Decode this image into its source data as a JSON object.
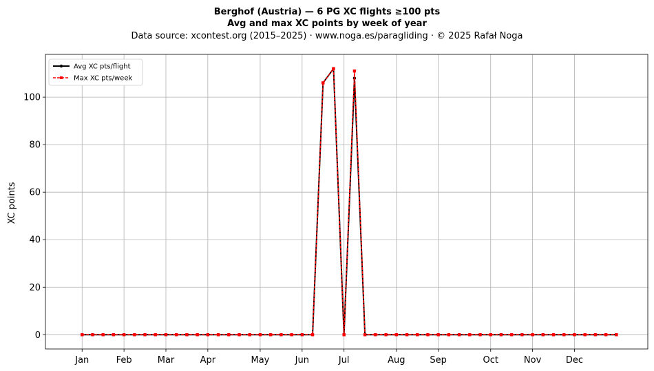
{
  "chart_data": {
    "type": "line",
    "title": "Berghof (Austria)  —  6 PG XC flights ≥100 pts",
    "subtitle": "Avg and max XC points by week of year",
    "source": "Data source: xcontest.org (2015–2025)  ·  www.noga.es/paragliding  ·  © 2025 Rafał Noga",
    "xlabel": "",
    "ylabel": "XC points",
    "xlim": [
      -2.5,
      55
    ],
    "ylim": [
      -6,
      118
    ],
    "yticks": [
      0,
      20,
      40,
      60,
      80,
      100
    ],
    "month_ticks": [
      {
        "label": "Jan",
        "week": 1
      },
      {
        "label": "Feb",
        "week": 5
      },
      {
        "label": "Mar",
        "week": 9
      },
      {
        "label": "Apr",
        "week": 13
      },
      {
        "label": "May",
        "week": 18
      },
      {
        "label": "Jun",
        "week": 22
      },
      {
        "label": "Jul",
        "week": 26
      },
      {
        "label": "Aug",
        "week": 31
      },
      {
        "label": "Sep",
        "week": 35
      },
      {
        "label": "Oct",
        "week": 40
      },
      {
        "label": "Nov",
        "week": 44
      },
      {
        "label": "Dec",
        "week": 48
      }
    ],
    "grid": true,
    "legend_position": "top-left",
    "x": [
      1,
      2,
      3,
      4,
      5,
      6,
      7,
      8,
      9,
      10,
      11,
      12,
      13,
      14,
      15,
      16,
      17,
      18,
      19,
      20,
      21,
      22,
      23,
      24,
      25,
      26,
      27,
      28,
      29,
      30,
      31,
      32,
      33,
      34,
      35,
      36,
      37,
      38,
      39,
      40,
      41,
      42,
      43,
      44,
      45,
      46,
      47,
      48,
      49,
      50,
      51,
      52
    ],
    "series": [
      {
        "name": "Avg XC pts/flight",
        "color": "#000000",
        "style": "solid-circle",
        "values": [
          0,
          0,
          0,
          0,
          0,
          0,
          0,
          0,
          0,
          0,
          0,
          0,
          0,
          0,
          0,
          0,
          0,
          0,
          0,
          0,
          0,
          0,
          0,
          106,
          112,
          0,
          108,
          0,
          0,
          0,
          0,
          0,
          0,
          0,
          0,
          0,
          0,
          0,
          0,
          0,
          0,
          0,
          0,
          0,
          0,
          0,
          0,
          0,
          0,
          0,
          0,
          0
        ]
      },
      {
        "name": "Max XC pts/week",
        "color": "#ff0000",
        "style": "dashed-square",
        "values": [
          0,
          0,
          0,
          0,
          0,
          0,
          0,
          0,
          0,
          0,
          0,
          0,
          0,
          0,
          0,
          0,
          0,
          0,
          0,
          0,
          0,
          0,
          0,
          106,
          112,
          0,
          111,
          0,
          0,
          0,
          0,
          0,
          0,
          0,
          0,
          0,
          0,
          0,
          0,
          0,
          0,
          0,
          0,
          0,
          0,
          0,
          0,
          0,
          0,
          0,
          0,
          0
        ]
      }
    ]
  }
}
